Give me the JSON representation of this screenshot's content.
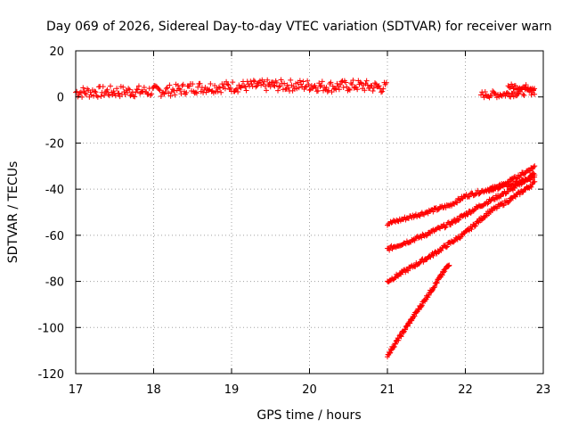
{
  "chart_data": {
    "type": "scatter",
    "title": "Day 069 of 2026, Sidereal Day-to-day VTEC variation (SDTVAR) for receiver warn",
    "xlabel": "GPS time / hours",
    "ylabel": "SDTVAR / TECUs",
    "xlim": [
      17,
      23
    ],
    "ylim": [
      -120,
      20
    ],
    "x_ticks": [
      17,
      18,
      19,
      20,
      21,
      22,
      23
    ],
    "y_ticks": [
      20,
      0,
      -20,
      -40,
      -60,
      -80,
      -100,
      -120
    ],
    "grid": true,
    "marker": "plus",
    "color": "#ff0000",
    "series": [
      {
        "points": [
          [
            17.0,
            2.0
          ],
          [
            17.5,
            2.3
          ],
          [
            18.0,
            2.5
          ],
          [
            18.3,
            3.0
          ],
          [
            18.5,
            4.0
          ],
          [
            19.0,
            4.5
          ],
          [
            19.5,
            5.0
          ],
          [
            20.0,
            5.0
          ],
          [
            20.3,
            4.5
          ],
          [
            20.6,
            5.0
          ],
          [
            21.0,
            4.0
          ]
        ],
        "band": 2.5
      },
      {
        "points": [
          [
            22.2,
            1.0
          ],
          [
            22.5,
            1.2
          ],
          [
            22.7,
            2.0
          ],
          [
            22.9,
            2.5
          ]
        ],
        "band": 1.5
      },
      {
        "points": [
          [
            22.55,
            4.5
          ],
          [
            22.9,
            4.0
          ]
        ],
        "band": 1.2
      },
      {
        "points": [
          [
            21.0,
            -55
          ],
          [
            21.3,
            -52
          ],
          [
            21.6,
            -49
          ],
          [
            21.8,
            -47
          ],
          [
            22.0,
            -43
          ],
          [
            22.3,
            -40
          ],
          [
            22.6,
            -38
          ],
          [
            22.9,
            -35
          ]
        ],
        "band": 0.8
      },
      {
        "points": [
          [
            21.0,
            -66
          ],
          [
            21.4,
            -61
          ],
          [
            21.8,
            -55
          ],
          [
            22.2,
            -47
          ],
          [
            22.6,
            -40
          ],
          [
            22.9,
            -33
          ]
        ],
        "band": 0.8
      },
      {
        "points": [
          [
            22.3,
            -41
          ],
          [
            22.6,
            -36
          ],
          [
            22.9,
            -30
          ]
        ],
        "band": 0.8
      },
      {
        "points": [
          [
            21.0,
            -80
          ],
          [
            21.3,
            -74
          ],
          [
            21.6,
            -68
          ],
          [
            22.0,
            -59
          ],
          [
            22.3,
            -50
          ],
          [
            22.6,
            -44
          ],
          [
            22.9,
            -37
          ]
        ],
        "band": 0.8
      },
      {
        "points": [
          [
            21.0,
            -112
          ],
          [
            21.2,
            -102
          ],
          [
            21.4,
            -92
          ],
          [
            21.6,
            -82
          ],
          [
            21.8,
            -72
          ]
        ],
        "band": 0.8
      }
    ]
  }
}
